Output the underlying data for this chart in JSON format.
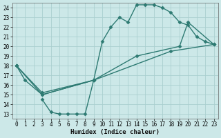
{
  "xlabel": "Humidex (Indice chaleur)",
  "bg_color": "#cce8e8",
  "grid_color": "#aacfcf",
  "line_color": "#2d7a72",
  "xlim": [
    -0.5,
    23.5
  ],
  "ylim": [
    12.5,
    24.5
  ],
  "xticks": [
    0,
    1,
    2,
    3,
    4,
    5,
    6,
    7,
    8,
    9,
    10,
    11,
    12,
    13,
    14,
    15,
    16,
    17,
    18,
    19,
    20,
    21,
    22,
    23
  ],
  "yticks": [
    13,
    14,
    15,
    16,
    17,
    18,
    19,
    20,
    21,
    22,
    23,
    24
  ],
  "line1_x": [
    0,
    1,
    3,
    9,
    10,
    11,
    12,
    13,
    14,
    15,
    16,
    17,
    18,
    19,
    20,
    21,
    22,
    23
  ],
  "line1_y": [
    18,
    16.5,
    15,
    16.5,
    20.5,
    22,
    23,
    22.5,
    24.3,
    24.3,
    24.3,
    24.0,
    23.5,
    22.5,
    22.2,
    21.0,
    20.5,
    20.2
  ],
  "line2_x": [
    3,
    4,
    5,
    6,
    7,
    8,
    9
  ],
  "line2_y": [
    14.5,
    13.2,
    13.0,
    13.0,
    13.0,
    13.0,
    16.5
  ],
  "line3_x": [
    0,
    3,
    9,
    14,
    19,
    20,
    23
  ],
  "line3_y": [
    18.0,
    15.0,
    16.5,
    19.0,
    20.0,
    22.5,
    20.2
  ],
  "line4_x": [
    0,
    3,
    9,
    18,
    23
  ],
  "line4_y": [
    18.0,
    15.2,
    16.5,
    19.5,
    20.2
  ],
  "markersize": 2.5,
  "linewidth": 1.0
}
